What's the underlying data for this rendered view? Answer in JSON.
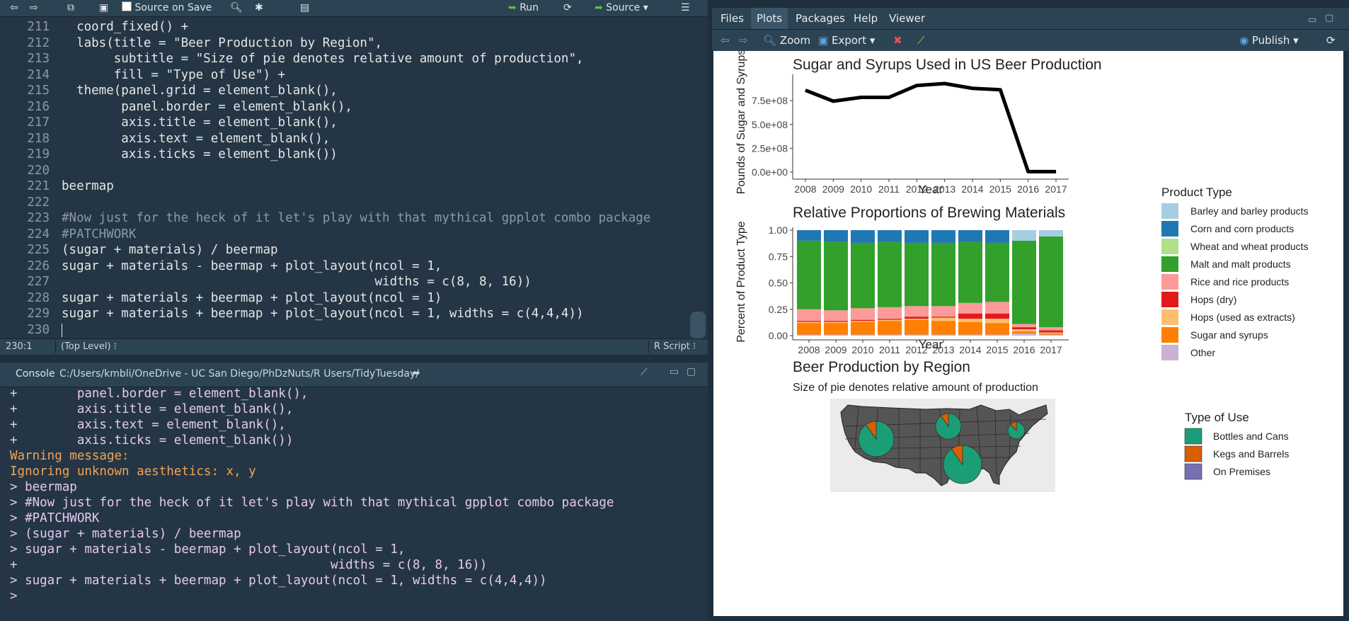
{
  "editor": {
    "toolbar": {
      "source_on_save_label": "Source on Save",
      "run_label": "Run",
      "source_label": "Source"
    },
    "lines": [
      {
        "n": "211",
        "code": "  coord_fixed() +"
      },
      {
        "n": "212",
        "code": "  labs(title = \"Beer Production by Region\","
      },
      {
        "n": "213",
        "code": "       subtitle = \"Size of pie denotes relative amount of production\","
      },
      {
        "n": "214",
        "code": "       fill = \"Type of Use\") +"
      },
      {
        "n": "215",
        "code": "  theme(panel.grid = element_blank(),"
      },
      {
        "n": "216",
        "code": "        panel.border = element_blank(),"
      },
      {
        "n": "217",
        "code": "        axis.title = element_blank(),"
      },
      {
        "n": "218",
        "code": "        axis.text = element_blank(),"
      },
      {
        "n": "219",
        "code": "        axis.ticks = element_blank())"
      },
      {
        "n": "220",
        "code": ""
      },
      {
        "n": "221",
        "code": "beermap"
      },
      {
        "n": "222",
        "code": ""
      },
      {
        "n": "223",
        "code": "#Now just for the heck of it let's play with that mythical gpplot combo package"
      },
      {
        "n": "224",
        "code": "#PATCHWORK"
      },
      {
        "n": "225",
        "code": "(sugar + materials) / beermap"
      },
      {
        "n": "226",
        "code": "sugar + materials - beermap + plot_layout(ncol = 1,"
      },
      {
        "n": "227",
        "code": "                                          widths = c(8, 8, 16))"
      },
      {
        "n": "228",
        "code": "sugar + materials + beermap + plot_layout(ncol = 1)"
      },
      {
        "n": "229",
        "code": "sugar + materials + beermap + plot_layout(ncol = 1, widths = c(4,4,4))"
      },
      {
        "n": "230",
        "code": ""
      }
    ],
    "status": {
      "position": "230:1",
      "scope": "(Top Level)",
      "filetype": "R Script"
    }
  },
  "console": {
    "title": "Console",
    "path": "C:/Users/kmbli/OneDrive - UC San Diego/PhDzNuts/R Users/TidyTuesday/",
    "lines": [
      {
        "kind": "cont",
        "text": "+        panel.border = element_blank(),"
      },
      {
        "kind": "cont",
        "text": "+        axis.title = element_blank(),"
      },
      {
        "kind": "cont",
        "text": "+        axis.text = element_blank(),"
      },
      {
        "kind": "cont",
        "text": "+        axis.ticks = element_blank())"
      },
      {
        "kind": "warn",
        "text": "Warning message:"
      },
      {
        "kind": "warn",
        "text": "Ignoring unknown aesthetics: x, y"
      },
      {
        "kind": "prm",
        "text": "> beermap"
      },
      {
        "kind": "prm",
        "text": "> #Now just for the heck of it let's play with that mythical gpplot combo package"
      },
      {
        "kind": "prm",
        "text": "> #PATCHWORK"
      },
      {
        "kind": "prm",
        "text": "> (sugar + materials) / beermap"
      },
      {
        "kind": "prm",
        "text": "> sugar + materials - beermap + plot_layout(ncol = 1,"
      },
      {
        "kind": "cont",
        "text": "+                                          widths = c(8, 8, 16))"
      },
      {
        "kind": "prm",
        "text": "> sugar + materials + beermap + plot_layout(ncol = 1, widths = c(4,4,4))"
      },
      {
        "kind": "prm",
        "text": "> "
      }
    ]
  },
  "tabs": [
    "Files",
    "Plots",
    "Packages",
    "Help",
    "Viewer"
  ],
  "active_tab": "Plots",
  "plot_toolbar": {
    "zoom_label": "Zoom",
    "export_label": "Export",
    "publish_label": "Publish"
  },
  "colors": {
    "bottles": "#1b9e77",
    "kegs": "#d95f02",
    "premises": "#7570b3",
    "map_state": "#555555",
    "map_bg": "#ebebeb"
  },
  "chart_data": [
    {
      "type": "line",
      "title": "Sugar and Syrups Used in US Beer Production",
      "xlabel": "Year",
      "ylabel": "Pounds of Sugar and Syrups",
      "x": [
        2008,
        2009,
        2010,
        2011,
        2012,
        2013,
        2014,
        2015,
        2016,
        2017
      ],
      "values": [
        860000000,
        745000000,
        785000000,
        785000000,
        910000000,
        930000000,
        880000000,
        865000000,
        5000000,
        5000000
      ],
      "yticks": [
        "0.0e+00",
        "2.5e+08",
        "5.0e+08",
        "7.5e+08"
      ],
      "ylim": [
        0,
        1000000000
      ]
    },
    {
      "type": "bar",
      "title": "Relative Proportions of Brewing Materials",
      "xlabel": "Year",
      "ylabel": "Percent of Product Type",
      "categories": [
        "2008",
        "2009",
        "2010",
        "2011",
        "2012",
        "2013",
        "2014",
        "2015",
        "2016",
        "2017"
      ],
      "yticks": [
        "0.00",
        "0.25",
        "0.50",
        "0.75",
        "1.00"
      ],
      "legend_title": "Product Type",
      "series": [
        {
          "name": "Other",
          "color": "#cab2d6",
          "values": [
            0.01,
            0.01,
            0.01,
            0.01,
            0.01,
            0.01,
            0.01,
            0.01,
            0.02,
            0.01
          ]
        },
        {
          "name": "Sugar and syrups",
          "color": "#ff7f00",
          "values": [
            0.11,
            0.11,
            0.12,
            0.13,
            0.14,
            0.13,
            0.12,
            0.11,
            0.02,
            0.01
          ]
        },
        {
          "name": "Hops (used as extracts)",
          "color": "#fdbf6f",
          "values": [
            0.01,
            0.01,
            0.01,
            0.01,
            0.01,
            0.03,
            0.03,
            0.04,
            0.02,
            0.01
          ]
        },
        {
          "name": "Hops (dry)",
          "color": "#e31a1c",
          "values": [
            0.01,
            0.01,
            0.01,
            0.01,
            0.02,
            0.01,
            0.05,
            0.05,
            0.02,
            0.02
          ]
        },
        {
          "name": "Rice and rice products",
          "color": "#fb9a99",
          "values": [
            0.11,
            0.1,
            0.11,
            0.11,
            0.1,
            0.1,
            0.1,
            0.11,
            0.03,
            0.03
          ]
        },
        {
          "name": "Malt and malt products",
          "color": "#33a02c",
          "values": [
            0.65,
            0.65,
            0.62,
            0.62,
            0.6,
            0.6,
            0.58,
            0.56,
            0.79,
            0.86
          ]
        },
        {
          "name": "Wheat and wheat products",
          "color": "#b2df8a",
          "values": [
            0.0,
            0.0,
            0.0,
            0.0,
            0.0,
            0.0,
            0.0,
            0.0,
            0.0,
            0.0
          ]
        },
        {
          "name": "Corn and corn products",
          "color": "#1f78b4",
          "values": [
            0.1,
            0.11,
            0.12,
            0.11,
            0.12,
            0.12,
            0.11,
            0.12,
            0.0,
            0.0
          ]
        },
        {
          "name": "Barley and barley products",
          "color": "#a6cee3",
          "values": [
            0.0,
            0.0,
            0.0,
            0.0,
            0.0,
            0.0,
            0.0,
            0.0,
            0.1,
            0.06
          ]
        }
      ],
      "legend_order": [
        "Barley and barley products",
        "Corn and corn products",
        "Wheat and wheat products",
        "Malt and malt products",
        "Rice and rice products",
        "Hops (dry)",
        "Hops (used as extracts)",
        "Sugar and syrups",
        "Other"
      ]
    },
    {
      "type": "pie",
      "title": "Beer Production by Region",
      "subtitle": "Size of pie denotes relative amount of production",
      "legend_title": "Type of Use",
      "categories": [
        "Bottles and Cans",
        "Kegs and Barrels",
        "On Premises"
      ],
      "pies": [
        {
          "region": "West",
          "values": [
            0.9,
            0.1,
            0.0
          ]
        },
        {
          "region": "Midwest",
          "values": [
            0.9,
            0.1,
            0.0
          ]
        },
        {
          "region": "South",
          "values": [
            0.9,
            0.1,
            0.0
          ]
        },
        {
          "region": "Northeast",
          "values": [
            0.88,
            0.12,
            0.0
          ]
        }
      ]
    }
  ]
}
